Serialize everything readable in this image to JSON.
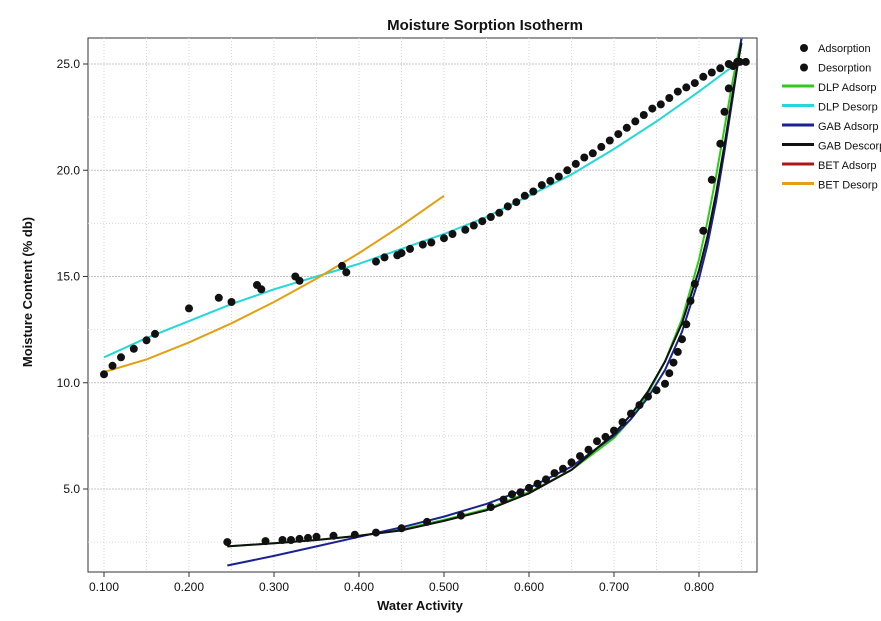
{
  "chart_data": {
    "type": "scatter",
    "title": "Moisture Sorption Isotherm",
    "xlabel": "Water Activity",
    "ylabel": "Moisture Content (% db)",
    "xlim": [
      0.09,
      0.86
    ],
    "ylim": [
      1.0,
      26.0
    ],
    "x_ticks": [
      0.1,
      0.2,
      0.3,
      0.4,
      0.5,
      0.6,
      0.7,
      0.8
    ],
    "x_tick_labels": [
      "0.100",
      "0.200",
      "0.300",
      "0.400",
      "0.500",
      "0.600",
      "0.700",
      "0.800"
    ],
    "y_ticks": [
      5.0,
      10.0,
      15.0,
      20.0,
      25.0
    ],
    "y_tick_labels": [
      "5.0",
      "10.0",
      "15.0",
      "20.0",
      "25.0"
    ],
    "grid": true,
    "legend_position": "right",
    "series": [
      {
        "name": "Adsorption",
        "kind": "points",
        "color": "#111111",
        "x": [
          0.245,
          0.29,
          0.31,
          0.32,
          0.33,
          0.34,
          0.35,
          0.37,
          0.395,
          0.42,
          0.45,
          0.48,
          0.52,
          0.555,
          0.57,
          0.58,
          0.59,
          0.6,
          0.61,
          0.62,
          0.63,
          0.64,
          0.65,
          0.66,
          0.67,
          0.68,
          0.69,
          0.7,
          0.71,
          0.72,
          0.73,
          0.74,
          0.75,
          0.76,
          0.765,
          0.77,
          0.775,
          0.78,
          0.785,
          0.79,
          0.795,
          0.805,
          0.815,
          0.825,
          0.83,
          0.835,
          0.84,
          0.848
        ],
        "y": [
          2.5,
          2.55,
          2.6,
          2.6,
          2.65,
          2.7,
          2.75,
          2.8,
          2.85,
          2.95,
          3.15,
          3.45,
          3.75,
          4.15,
          4.5,
          4.75,
          4.85,
          5.05,
          5.25,
          5.45,
          5.75,
          5.95,
          6.25,
          6.55,
          6.85,
          7.25,
          7.45,
          7.75,
          8.15,
          8.55,
          8.95,
          9.35,
          9.65,
          9.95,
          10.45,
          10.95,
          11.45,
          12.05,
          12.75,
          13.85,
          14.65,
          17.15,
          19.55,
          21.25,
          22.75,
          23.85,
          24.9,
          25.1
        ]
      },
      {
        "name": "Desorption",
        "kind": "points",
        "color": "#111111",
        "x": [
          0.1,
          0.11,
          0.12,
          0.135,
          0.15,
          0.16,
          0.2,
          0.235,
          0.25,
          0.28,
          0.285,
          0.325,
          0.33,
          0.38,
          0.385,
          0.42,
          0.43,
          0.445,
          0.45,
          0.46,
          0.475,
          0.485,
          0.5,
          0.51,
          0.525,
          0.535,
          0.545,
          0.555,
          0.565,
          0.575,
          0.585,
          0.595,
          0.605,
          0.615,
          0.625,
          0.635,
          0.645,
          0.655,
          0.665,
          0.675,
          0.685,
          0.695,
          0.705,
          0.715,
          0.725,
          0.735,
          0.745,
          0.755,
          0.765,
          0.775,
          0.785,
          0.795,
          0.805,
          0.815,
          0.825,
          0.835,
          0.845,
          0.855
        ],
        "y": [
          10.4,
          10.8,
          11.2,
          11.6,
          12.0,
          12.3,
          13.5,
          14.0,
          13.8,
          14.6,
          14.4,
          15.0,
          14.8,
          15.5,
          15.2,
          15.7,
          15.9,
          16.0,
          16.1,
          16.3,
          16.5,
          16.6,
          16.8,
          17.0,
          17.2,
          17.4,
          17.6,
          17.8,
          18.0,
          18.3,
          18.5,
          18.8,
          19.0,
          19.3,
          19.5,
          19.7,
          20.0,
          20.3,
          20.6,
          20.8,
          21.1,
          21.4,
          21.7,
          22.0,
          22.3,
          22.6,
          22.9,
          23.1,
          23.4,
          23.7,
          23.9,
          24.1,
          24.4,
          24.6,
          24.8,
          25.0,
          25.1,
          25.1
        ]
      },
      {
        "name": "DLP Adsorp",
        "kind": "line",
        "color": "#2ecc1a",
        "x": [
          0.245,
          0.3,
          0.35,
          0.4,
          0.45,
          0.5,
          0.55,
          0.6,
          0.65,
          0.7,
          0.72,
          0.74,
          0.76,
          0.78,
          0.8,
          0.81,
          0.82,
          0.83,
          0.84,
          0.85
        ],
        "y": [
          2.3,
          2.45,
          2.6,
          2.8,
          3.1,
          3.55,
          4.05,
          4.85,
          5.9,
          7.4,
          8.3,
          9.5,
          11.0,
          13.0,
          15.8,
          17.6,
          19.7,
          22.0,
          24.3,
          26.2
        ]
      },
      {
        "name": "DLP Desorp",
        "kind": "line",
        "color": "#22d8d8",
        "x": [
          0.1,
          0.15,
          0.2,
          0.25,
          0.3,
          0.35,
          0.4,
          0.45,
          0.5,
          0.55,
          0.6,
          0.65,
          0.7,
          0.75,
          0.8,
          0.85
        ],
        "y": [
          11.2,
          12.1,
          12.9,
          13.7,
          14.4,
          15.0,
          15.6,
          16.3,
          17.0,
          17.8,
          18.8,
          19.8,
          21.0,
          22.3,
          23.7,
          25.2
        ]
      },
      {
        "name": "GAB Adsorp",
        "kind": "line",
        "color": "#1a2290",
        "x": [
          0.245,
          0.3,
          0.35,
          0.4,
          0.45,
          0.5,
          0.55,
          0.6,
          0.65,
          0.7,
          0.72,
          0.74,
          0.76,
          0.78,
          0.8,
          0.81,
          0.82,
          0.83,
          0.84,
          0.85
        ],
        "y": [
          1.4,
          1.85,
          2.3,
          2.75,
          3.2,
          3.7,
          4.3,
          5.05,
          6.05,
          7.5,
          8.3,
          9.3,
          10.6,
          12.4,
          14.9,
          16.5,
          18.5,
          20.9,
          23.5,
          26.2
        ]
      },
      {
        "name": "GAB Descorp",
        "kind": "line",
        "color": "#111111",
        "x": [
          0.245,
          0.3,
          0.35,
          0.4,
          0.45,
          0.5,
          0.55,
          0.6,
          0.65,
          0.7,
          0.72,
          0.74,
          0.76,
          0.78,
          0.8,
          0.81,
          0.82,
          0.83,
          0.84,
          0.85
        ],
        "y": [
          2.3,
          2.45,
          2.6,
          2.8,
          3.05,
          3.5,
          4.0,
          4.8,
          5.9,
          7.6,
          8.5,
          9.6,
          11.0,
          12.8,
          15.3,
          16.9,
          18.9,
          21.2,
          23.7,
          26.0
        ]
      },
      {
        "name": "BET Adsorp",
        "kind": "line",
        "color": "#b01515",
        "x": [],
        "y": []
      },
      {
        "name": "BET Desorp",
        "kind": "line",
        "color": "#e2a012",
        "x": [
          0.1,
          0.15,
          0.2,
          0.25,
          0.3,
          0.35,
          0.4,
          0.45,
          0.5
        ],
        "y": [
          10.5,
          11.1,
          11.9,
          12.8,
          13.8,
          14.9,
          16.1,
          17.4,
          18.8
        ]
      }
    ]
  }
}
